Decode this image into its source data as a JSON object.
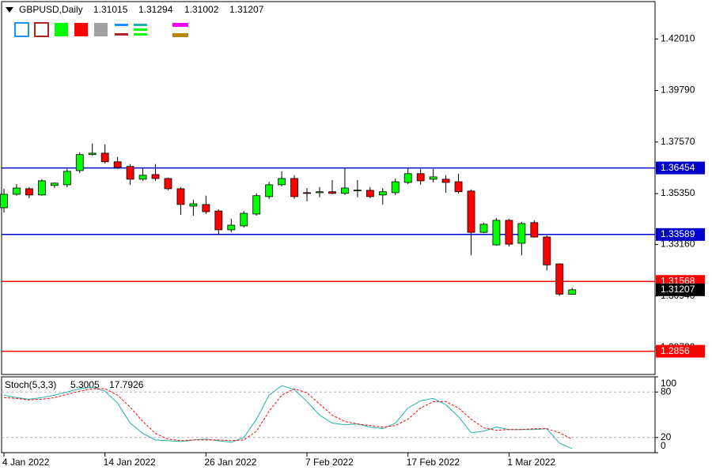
{
  "chart_data": [
    {
      "type": "candlestick",
      "title": "GBPUSD,Daily",
      "categories": [
        "4 Jan 2022",
        null,
        null,
        null,
        null,
        null,
        null,
        null,
        "14 Jan 2022",
        null,
        null,
        null,
        null,
        null,
        null,
        null,
        "26 Jan 2022",
        null,
        null,
        null,
        null,
        null,
        null,
        null,
        "7 Feb 2022",
        null,
        null,
        null,
        null,
        null,
        null,
        null,
        "17 Feb 2022",
        null,
        null,
        null,
        null,
        null,
        null,
        null,
        "1 Mar 2022",
        null,
        null,
        null,
        null,
        null
      ],
      "open": [
        1.3474,
        1.3532,
        1.3556,
        1.3529,
        1.357,
        1.3573,
        1.3634,
        1.3703,
        1.3709,
        1.3672,
        1.3652,
        1.3597,
        1.3617,
        1.36,
        1.3556,
        1.3481,
        1.3488,
        1.346,
        1.3379,
        1.3396,
        1.3447,
        1.3522,
        1.3573,
        1.36,
        1.3539,
        1.3539,
        1.3543,
        1.3536,
        1.3549,
        1.3549,
        1.3529,
        1.3539,
        1.3583,
        1.3621,
        1.3597,
        1.3597,
        1.3586,
        1.3546,
        1.3368,
        1.3314,
        1.342,
        1.3321,
        1.341,
        1.3348,
        1.3232,
        1.31015
      ],
      "high": [
        1.3556,
        1.3576,
        1.3563,
        1.3597,
        1.3583,
        1.3641,
        1.3713,
        1.3751,
        1.3747,
        1.3693,
        1.3662,
        1.3648,
        1.3662,
        1.3604,
        1.3563,
        1.3509,
        1.3526,
        1.3467,
        1.3426,
        1.346,
        1.3536,
        1.3586,
        1.3631,
        1.3614,
        1.3559,
        1.3563,
        1.3593,
        1.3645,
        1.3593,
        1.3563,
        1.3559,
        1.36,
        1.3645,
        1.3641,
        1.3641,
        1.3614,
        1.3621,
        1.3553,
        1.341,
        1.343,
        1.3426,
        1.3413,
        1.342,
        1.3355,
        1.3235,
        1.31294
      ],
      "low": [
        1.3454,
        1.3526,
        1.3515,
        1.3526,
        1.3559,
        1.3563,
        1.3624,
        1.3699,
        1.3665,
        1.3641,
        1.3573,
        1.359,
        1.359,
        1.3549,
        1.3443,
        1.344,
        1.3447,
        1.3358,
        1.3368,
        1.3389,
        1.344,
        1.3512,
        1.3566,
        1.3512,
        1.3502,
        1.3519,
        1.3532,
        1.3529,
        1.3519,
        1.3515,
        1.3488,
        1.3529,
        1.3576,
        1.3573,
        1.3583,
        1.3539,
        1.3536,
        1.3269,
        1.3365,
        1.3311,
        1.3307,
        1.3269,
        1.3345,
        1.3204,
        1.3095,
        1.31002
      ],
      "close": [
        1.3532,
        1.3559,
        1.3529,
        1.359,
        1.358,
        1.3631,
        1.3703,
        1.3709,
        1.3672,
        1.3648,
        1.3597,
        1.3614,
        1.36,
        1.3556,
        1.3488,
        1.3491,
        1.3457,
        1.3379,
        1.3399,
        1.345,
        1.3526,
        1.3573,
        1.36,
        1.3522,
        1.3536,
        1.3543,
        1.3536,
        1.3559,
        1.355,
        1.3522,
        1.3543,
        1.3586,
        1.3621,
        1.359,
        1.3607,
        1.3583,
        1.3543,
        1.3368,
        1.3403,
        1.342,
        1.3317,
        1.3406,
        1.3348,
        1.3228,
        1.3102,
        1.31207
      ],
      "up_color": "#00ff00",
      "down_color": "#ff0000",
      "ylim": [
        1.2756,
        1.4362
      ],
      "yticks": [
        {
          "value": 1.4201,
          "label": "1.42010"
        },
        {
          "value": 1.3979,
          "label": "1.39790"
        },
        {
          "value": 1.3757,
          "label": "1.37570"
        },
        {
          "value": 1.3535,
          "label": "1.35350"
        },
        {
          "value": 1.3316,
          "label": "1.33160"
        },
        {
          "value": 1.3094,
          "label": "1.30940"
        },
        {
          "value": 1.2872,
          "label": "1.28720"
        }
      ],
      "levels": [
        {
          "value": 1.36454,
          "color": "#0000cd"
        },
        {
          "value": 1.33589,
          "color": "#0000cd"
        },
        {
          "value": 1.31568,
          "color": "#ff0000"
        },
        {
          "value": 1.2856,
          "color": "#ff0000"
        }
      ]
    },
    {
      "type": "line",
      "title": "Stoch(5,3,3)",
      "series": [
        {
          "color": "#20b2aa",
          "dashed": false,
          "values": [
            75.8,
            72.6,
            70.5,
            72.6,
            75.8,
            80.0,
            84.2,
            86.3,
            81.1,
            65.3,
            38.9,
            25.3,
            16.8,
            15.8,
            14.7,
            16.8,
            17.9,
            15.8,
            13.7,
            20.0,
            44.2,
            75.8,
            88.4,
            83.2,
            67.4,
            49.5,
            38.9,
            36.8,
            37.9,
            33.7,
            31.6,
            38.9,
            58.9,
            68.4,
            71.6,
            63.2,
            47.4,
            26.3,
            28.4,
            33.7,
            30.5,
            30.5,
            30.5,
            31.6,
            12.6,
            5.3005
          ]
        },
        {
          "color": "#ff0000",
          "dashed": true,
          "values": [
            72.6,
            71.6,
            69.5,
            70.5,
            72.6,
            76.8,
            81.1,
            84.2,
            84.2,
            75.8,
            60.0,
            41.1,
            25.3,
            17.9,
            15.8,
            16.8,
            16.8,
            16.8,
            15.8,
            16.8,
            28.4,
            54.7,
            75.8,
            84.2,
            78.9,
            64.2,
            49.5,
            41.1,
            37.9,
            35.8,
            33.7,
            35.8,
            44.2,
            58.9,
            67.4,
            67.4,
            58.9,
            44.2,
            32.6,
            29.5,
            30.5,
            30.5,
            31.6,
            31.6,
            26.3,
            17.7926
          ]
        }
      ],
      "ylim": [
        0,
        100
      ],
      "yticks": [
        0,
        20,
        80,
        100
      ],
      "levels": [
        20,
        80
      ]
    }
  ]
}
